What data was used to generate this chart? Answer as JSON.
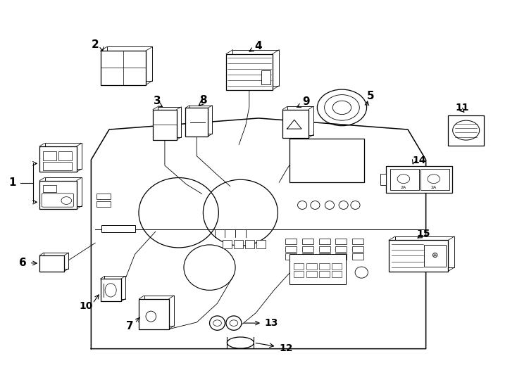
{
  "background_color": "#ffffff",
  "line_color": "#000000",
  "fig_width": 7.34,
  "fig_height": 5.4,
  "dpi": 100,
  "dashboard": {
    "outline_x": [
      0.175,
      0.175,
      0.21,
      0.5,
      0.79,
      0.825,
      0.825,
      0.175
    ],
    "outline_y": [
      0.08,
      0.58,
      0.66,
      0.69,
      0.66,
      0.58,
      0.08,
      0.08
    ]
  }
}
